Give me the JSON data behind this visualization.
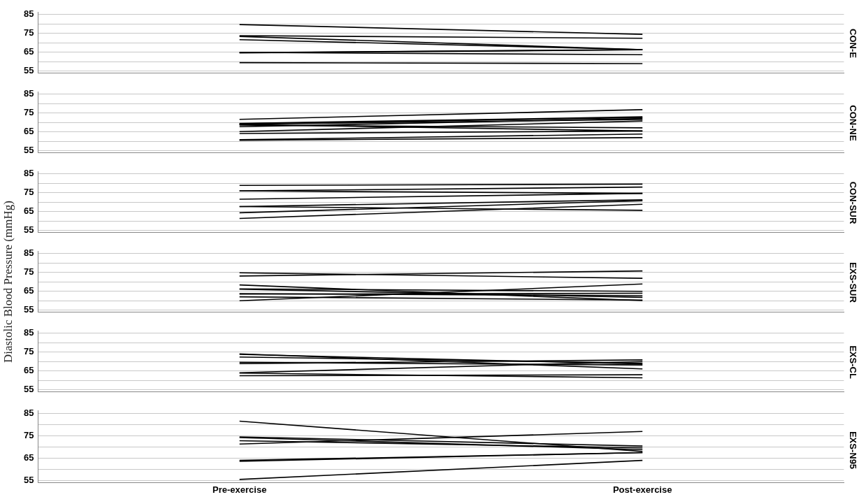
{
  "chart_data": [
    {
      "type": "line",
      "title": "CON-E",
      "categories": [
        null,
        null
      ],
      "ylim": [
        54,
        86
      ],
      "yticks": [
        55,
        {
          "value": 60,
          "label": null
        },
        65,
        {
          "value": 70,
          "label": null
        },
        75,
        {
          "value": 80,
          "label": null
        },
        85
      ],
      "grid": "y",
      "legend": false,
      "marker": "none",
      "line_style": "solid",
      "tick_labels": "y",
      "series": [
        {
          "color": "#000000",
          "values": [
            79.6,
            74.4
          ]
        },
        {
          "color": "#000000",
          "values": [
            73.7,
            72.3
          ]
        },
        {
          "color": "#000000",
          "values": [
            73.3,
            66.3
          ]
        },
        {
          "color": "#000000",
          "values": [
            71.6,
            66.3
          ]
        },
        {
          "color": "#000000",
          "values": [
            64.7,
            66.3
          ]
        },
        {
          "color": "#000000",
          "values": [
            64.6,
            66.2
          ]
        },
        {
          "color": "#000000",
          "values": [
            64.8,
            63.6
          ]
        },
        {
          "color": "#000000",
          "values": [
            59.4,
            58.9
          ]
        }
      ]
    },
    {
      "type": "line",
      "title": "CON-NE",
      "categories": [
        null,
        null
      ],
      "ylim": [
        54,
        86
      ],
      "yticks": [
        55,
        {
          "value": 60,
          "label": null
        },
        65,
        {
          "value": 70,
          "label": null
        },
        75,
        {
          "value": 80,
          "label": null
        },
        85
      ],
      "grid": "y",
      "legend": false,
      "marker": "none",
      "line_style": "solid",
      "tick_labels": "y",
      "series": [
        {
          "color": "#000000",
          "values": [
            71.6,
            76.7
          ]
        },
        {
          "color": "#000000",
          "values": [
            69.4,
            72.9
          ]
        },
        {
          "color": "#000000",
          "values": [
            69.2,
            72.5
          ]
        },
        {
          "color": "#000000",
          "values": [
            69.0,
            71.5
          ]
        },
        {
          "color": "#000000",
          "values": [
            68.9,
            65.4
          ]
        },
        {
          "color": "#000000",
          "values": [
            68.5,
            67.1
          ]
        },
        {
          "color": "#000000",
          "values": [
            67.7,
            72.0
          ]
        },
        {
          "color": "#000000",
          "values": [
            65.1,
            70.7
          ]
        },
        {
          "color": "#000000",
          "values": [
            64.1,
            65.4
          ]
        },
        {
          "color": "#000000",
          "values": [
            60.8,
            63.8
          ]
        },
        {
          "color": "#000000",
          "values": [
            60.5,
            61.9
          ]
        }
      ]
    },
    {
      "type": "line",
      "title": "CON-SUR",
      "categories": [
        null,
        null
      ],
      "ylim": [
        54,
        86
      ],
      "yticks": [
        55,
        {
          "value": 60,
          "label": null
        },
        65,
        {
          "value": 70,
          "label": null
        },
        75,
        {
          "value": 80,
          "label": null
        },
        85
      ],
      "grid": "y",
      "legend": false,
      "marker": "none",
      "line_style": "solid",
      "tick_labels": "y",
      "series": [
        {
          "color": "#000000",
          "values": [
            78.8,
            79.5
          ]
        },
        {
          "color": "#000000",
          "values": [
            75.9,
            77.9
          ]
        },
        {
          "color": "#000000",
          "values": [
            75.9,
            74.6
          ]
        },
        {
          "color": "#000000",
          "values": [
            71.5,
            74.6
          ]
        },
        {
          "color": "#000000",
          "values": [
            67.6,
            71.2
          ]
        },
        {
          "color": "#000000",
          "values": [
            67.6,
            65.6
          ]
        },
        {
          "color": "#000000",
          "values": [
            64.3,
            70.7
          ]
        },
        {
          "color": "#000000",
          "values": [
            61.3,
            68.8
          ]
        }
      ]
    },
    {
      "type": "line",
      "title": "EXS-SUR",
      "ylabel": "Diastolic Blood Pressure (mmHg)",
      "categories": [
        null,
        null
      ],
      "ylim": [
        54,
        86
      ],
      "yticks": [
        55,
        {
          "value": 60,
          "label": null
        },
        65,
        {
          "value": 70,
          "label": null
        },
        75,
        {
          "value": 80,
          "label": null
        },
        85
      ],
      "grid": "y",
      "legend": false,
      "marker": "none",
      "line_style": "solid",
      "tick_labels": "y",
      "series": [
        {
          "color": "#000000",
          "values": [
            74.7,
            71.8
          ]
        },
        {
          "color": "#000000",
          "values": [
            73.0,
            75.7
          ]
        },
        {
          "color": "#000000",
          "values": [
            68.3,
            60.0
          ]
        },
        {
          "color": "#000000",
          "values": [
            66.2,
            64.9
          ]
        },
        {
          "color": "#000000",
          "values": [
            66.0,
            61.7
          ]
        },
        {
          "color": "#000000",
          "values": [
            63.7,
            62.6
          ]
        },
        {
          "color": "#000000",
          "values": [
            63.4,
            63.9
          ]
        },
        {
          "color": "#000000",
          "values": [
            62.0,
            60.3
          ]
        },
        {
          "color": "#000000",
          "values": [
            59.9,
            68.8
          ]
        }
      ]
    },
    {
      "type": "line",
      "title": "EXS-CL",
      "categories": [
        null,
        null
      ],
      "ylim": [
        54,
        86
      ],
      "yticks": [
        55,
        {
          "value": 60,
          "label": null
        },
        65,
        {
          "value": 70,
          "label": null
        },
        75,
        {
          "value": 80,
          "label": null
        },
        85
      ],
      "grid": "y",
      "legend": false,
      "marker": "none",
      "line_style": "solid",
      "tick_labels": "y",
      "series": [
        {
          "color": "#000000",
          "values": [
            74.0,
            66.0
          ]
        },
        {
          "color": "#000000",
          "values": [
            73.7,
            68.6
          ]
        },
        {
          "color": "#000000",
          "values": [
            72.3,
            69.1
          ]
        },
        {
          "color": "#000000",
          "values": [
            69.5,
            68.1
          ]
        },
        {
          "color": "#000000",
          "values": [
            68.8,
            70.8
          ]
        },
        {
          "color": "#000000",
          "values": [
            64.0,
            69.9
          ]
        },
        {
          "color": "#000000",
          "values": [
            63.8,
            61.3
          ]
        },
        {
          "color": "#000000",
          "values": [
            62.4,
            62.9
          ]
        }
      ]
    },
    {
      "type": "line",
      "title": "EXS-N95",
      "categories": [
        "Pre-exercise",
        "Post-exercise"
      ],
      "ylim": [
        54,
        86
      ],
      "yticks": [
        55,
        {
          "value": 60,
          "label": null
        },
        65,
        {
          "value": 70,
          "label": null
        },
        75,
        {
          "value": 80,
          "label": null
        },
        85
      ],
      "grid": "y",
      "legend": false,
      "marker": "none",
      "line_style": "solid",
      "series": [
        {
          "color": "#000000",
          "values": [
            81.4,
            67.9
          ]
        },
        {
          "color": "#000000",
          "values": [
            74.4,
            70.3
          ]
        },
        {
          "color": "#000000",
          "values": [
            74.1,
            68.7
          ]
        },
        {
          "color": "#000000",
          "values": [
            72.7,
            69.5
          ]
        },
        {
          "color": "#000000",
          "values": [
            71.2,
            76.8
          ]
        },
        {
          "color": "#000000",
          "values": [
            63.9,
            67.4
          ]
        },
        {
          "color": "#000000",
          "values": [
            63.5,
            67.4
          ]
        },
        {
          "color": "#000000",
          "values": [
            55.4,
            63.9
          ]
        }
      ]
    }
  ]
}
